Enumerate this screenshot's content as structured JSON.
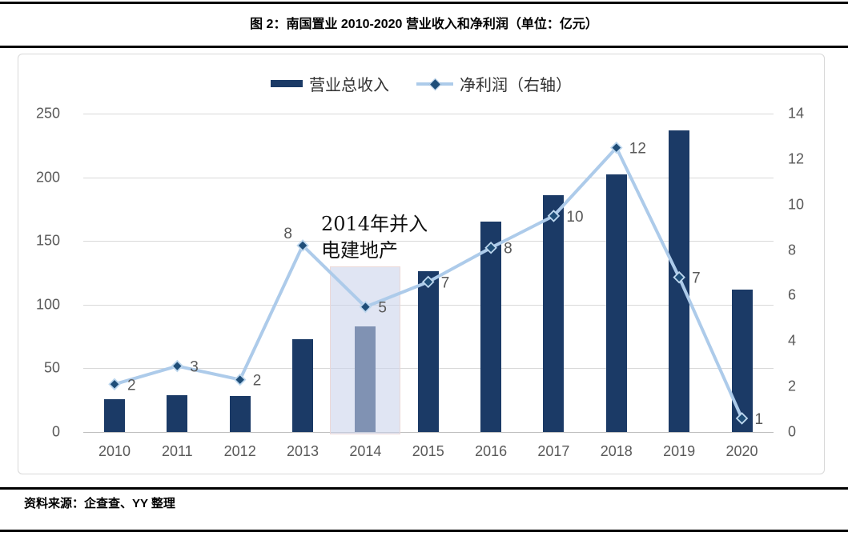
{
  "header": {
    "title": "图 2：南国置业 2010-2020 营业收入和净利润（单位：亿元）"
  },
  "footer": {
    "source": "资料来源：企查查、YY 整理"
  },
  "colors": {
    "bar": "#1b3a66",
    "line": "#adcbea",
    "marker_fill": "#1f4e79",
    "marker_stroke": "#bdd7ee",
    "label_text": "#595959"
  },
  "chart_data": {
    "type": "bar+line",
    "title": "图 2：南国置业 2010-2020 营业收入和净利润（单位：亿元）",
    "categories": [
      "2010",
      "2011",
      "2012",
      "2013",
      "2014",
      "2015",
      "2016",
      "2017",
      "2018",
      "2019",
      "2020"
    ],
    "series": [
      {
        "name": "营业总收入",
        "type": "bar",
        "axis": "left",
        "values": [
          26,
          29,
          28,
          73,
          83,
          126,
          165,
          186,
          202,
          237,
          112
        ]
      },
      {
        "name": "净利润（右轴）",
        "type": "line",
        "axis": "right",
        "values": [
          2.1,
          2.9,
          2.3,
          8.2,
          5.5,
          6.6,
          8.1,
          9.5,
          12.5,
          6.8,
          0.6
        ],
        "point_labels": [
          "2",
          "3",
          "2",
          "8",
          "5",
          "7",
          "8",
          "10",
          "12",
          "7",
          "1"
        ]
      }
    ],
    "left_axis": {
      "range": [
        0,
        250
      ],
      "ticks": [
        0,
        50,
        100,
        150,
        200,
        250
      ]
    },
    "right_axis": {
      "range": [
        0,
        14
      ],
      "ticks": [
        0,
        2,
        4,
        6,
        8,
        10,
        12,
        14
      ]
    },
    "legend": [
      "营业总收入",
      "净利润（右轴）"
    ],
    "legend_position": "top",
    "grid": true,
    "annotation": {
      "text_lines": [
        "2014年并入",
        "电建地产"
      ],
      "highlight_category": "2014"
    }
  }
}
